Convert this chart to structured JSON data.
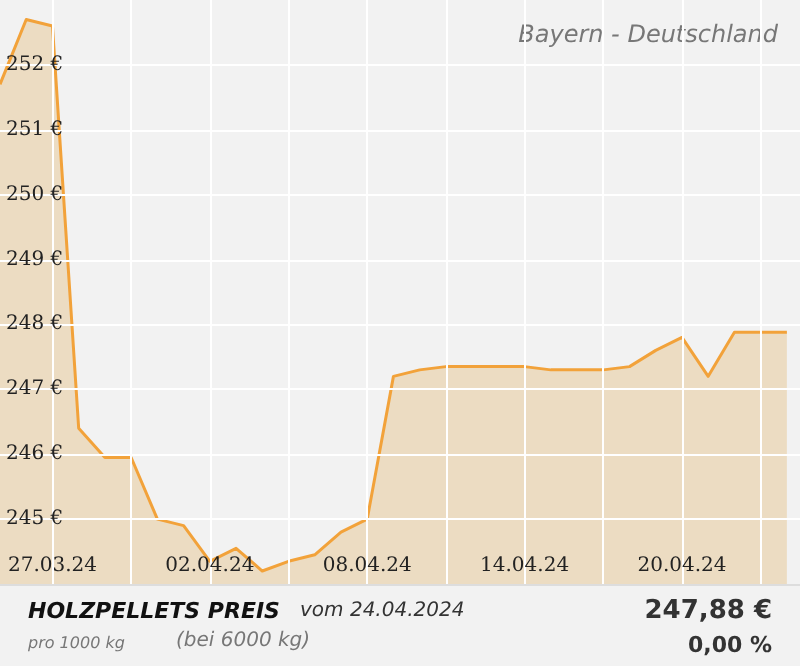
{
  "chart_data": {
    "type": "area",
    "title": "Bayern - Deutschland",
    "x": [
      "2024-03-25",
      "2024-03-26",
      "2024-03-27",
      "2024-03-28",
      "2024-03-29",
      "2024-03-30",
      "2024-03-31",
      "2024-04-01",
      "2024-04-02",
      "2024-04-03",
      "2024-04-04",
      "2024-04-05",
      "2024-04-06",
      "2024-04-07",
      "2024-04-08",
      "2024-04-09",
      "2024-04-10",
      "2024-04-11",
      "2024-04-12",
      "2024-04-13",
      "2024-04-14",
      "2024-04-15",
      "2024-04-16",
      "2024-04-17",
      "2024-04-18",
      "2024-04-19",
      "2024-04-20",
      "2024-04-21",
      "2024-04-22",
      "2024-04-23",
      "2024-04-24"
    ],
    "series": [
      {
        "color": "#f2a23a",
        "values": [
          251.7,
          252.7,
          252.6,
          246.4,
          245.95,
          245.95,
          245.0,
          244.9,
          244.35,
          244.55,
          244.2,
          244.35,
          244.45,
          244.8,
          245.0,
          247.2,
          247.3,
          247.35,
          247.35,
          247.35,
          247.35,
          247.3,
          247.3,
          247.3,
          247.35,
          247.6,
          247.8,
          247.2,
          247.88,
          247.88,
          247.88
        ]
      }
    ],
    "xlim": [
      "2024-03-25",
      "2024-04-24T12:00"
    ],
    "xticks": [
      {
        "value": "2024-03-27",
        "label": "27.03.24"
      },
      {
        "value": "2024-03-30",
        "label": null
      },
      {
        "value": "2024-04-02",
        "label": "02.04.24"
      },
      {
        "value": "2024-04-05",
        "label": null
      },
      {
        "value": "2024-04-08",
        "label": "08.04.24"
      },
      {
        "value": "2024-04-11",
        "label": null
      },
      {
        "value": "2024-04-14",
        "label": "14.04.24"
      },
      {
        "value": "2024-04-17",
        "label": null
      },
      {
        "value": "2024-04-20",
        "label": "20.04.24"
      },
      {
        "value": "2024-04-23",
        "label": null
      }
    ],
    "ylim": [
      244,
      253
    ],
    "yticks": [
      {
        "value": 245,
        "label": "245 €"
      },
      {
        "value": 246,
        "label": "246 €"
      },
      {
        "value": 247,
        "label": "247 €"
      },
      {
        "value": 248,
        "label": "248 €"
      },
      {
        "value": 249,
        "label": "249 €"
      },
      {
        "value": 250,
        "label": "250 €"
      },
      {
        "value": 251,
        "label": "251 €"
      },
      {
        "value": 252,
        "label": "252 €"
      }
    ],
    "grid": true,
    "annotations": [
      "HOLZPELLETS PREIS",
      "vom 24.04.2024",
      "pro 1000 kg",
      "(bei 6000 kg)",
      "247,88 €",
      "0,00 %"
    ]
  }
}
